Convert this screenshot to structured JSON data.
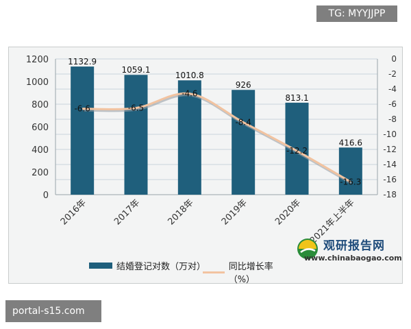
{
  "badges": {
    "top_right": "TG: MYYJJPP",
    "bottom_left": "portal-s15.com"
  },
  "watermark": {
    "title": "观研报告网",
    "url": "www.chinabaogao.com"
  },
  "colors": {
    "bar": "#1f5f7c",
    "line": "#f2c3a0",
    "line_shadow": "#9aa0a6",
    "frame_bg": "#f3f4f4",
    "grid": "#c9d5dc"
  },
  "chart_data": {
    "type": "bar",
    "categories": [
      "2016年",
      "2017年",
      "2018年",
      "2019年",
      "2020年",
      "2021年上半年"
    ],
    "series": [
      {
        "name": "结婚登记对数（万对）",
        "type": "bar",
        "axis": "left",
        "values": [
          1132.9,
          1059.1,
          1010.8,
          926,
          813.1,
          416.6
        ],
        "labels": [
          "1132.9",
          "1059.1",
          "1010.8",
          "926",
          "813.1",
          "416.6"
        ]
      },
      {
        "name": "同比增长率（%）",
        "type": "line",
        "axis": "right",
        "values": [
          -6.6,
          -6.5,
          -4.6,
          -8.4,
          -12.2,
          -16.3
        ],
        "labels": [
          "-6.6",
          "-6.5",
          "-4.6",
          "-8.4",
          "-12.2",
          "-16.3"
        ]
      }
    ],
    "y_left": {
      "ylim": [
        0,
        1200
      ],
      "ticks": [
        0,
        200,
        400,
        600,
        800,
        1000,
        1200
      ],
      "tick_labels": [
        "0",
        "200",
        "400",
        "600",
        "800",
        "1000",
        "1200"
      ]
    },
    "y_right": {
      "ylim": [
        -18,
        0
      ],
      "ticks": [
        0,
        -2,
        -4,
        -6,
        -8,
        -10,
        -12,
        -14,
        -16,
        -18
      ],
      "tick_labels": [
        "0",
        "-2",
        "-4",
        "-6",
        "-8",
        "-10",
        "-12",
        "-14",
        "-16",
        "-18"
      ]
    },
    "grid": true,
    "legend_placement": "bottom"
  }
}
